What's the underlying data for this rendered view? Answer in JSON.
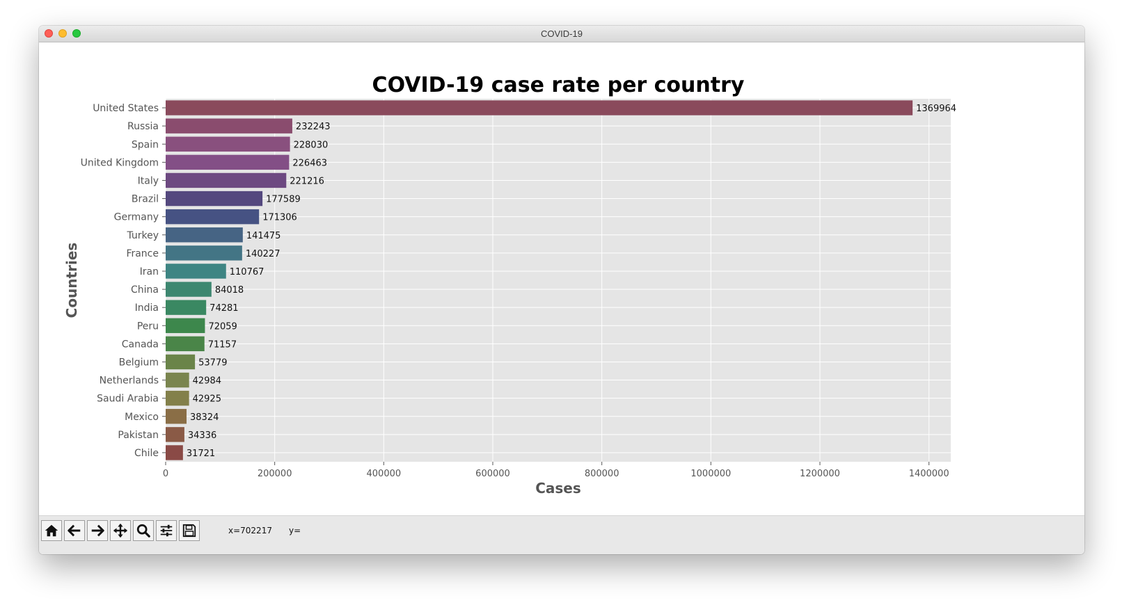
{
  "window": {
    "title": "COVID-19"
  },
  "toolbar": {
    "buttons": [
      "home-icon",
      "back-arrow-icon",
      "forward-arrow-icon",
      "pan-icon",
      "zoom-icon",
      "configure-subplots-icon",
      "save-icon"
    ],
    "x_readout": "x=702217",
    "y_readout": "y="
  },
  "chart_data": {
    "type": "bar",
    "orientation": "horizontal",
    "title": "COVID-19 case rate per country",
    "xlabel": "Cases",
    "ylabel": "Countries",
    "xlim": [
      0,
      1440000
    ],
    "xticks": [
      0,
      200000,
      400000,
      600000,
      800000,
      1000000,
      1200000,
      1400000
    ],
    "xtick_labels": [
      "0",
      "200000",
      "400000",
      "600000",
      "800000",
      "1000000",
      "1200000",
      "1400000"
    ],
    "grid": true,
    "categories": [
      "United States",
      "Russia",
      "Spain",
      "United Kingdom",
      "Italy",
      "Brazil",
      "Germany",
      "Turkey",
      "France",
      "Iran",
      "China",
      "India",
      "Peru",
      "Canada",
      "Belgium",
      "Netherlands",
      "Saudi Arabia",
      "Mexico",
      "Pakistan",
      "Chile"
    ],
    "values": [
      1369964,
      232243,
      228030,
      226463,
      221216,
      177589,
      171306,
      141475,
      140227,
      110767,
      84018,
      74281,
      72059,
      71157,
      53779,
      42984,
      42925,
      38324,
      34336,
      31721
    ],
    "value_labels": [
      "1369964",
      "232243",
      "228030",
      "226463",
      "221216",
      "177589",
      "171306",
      "141475",
      "140227",
      "110767",
      "84018",
      "74281",
      "72059",
      "71157",
      "53779",
      "42984",
      "42925",
      "38324",
      "34336",
      "31721"
    ],
    "colors": [
      "#8a4a5c",
      "#8a4c6e",
      "#89507e",
      "#834f86",
      "#6d4981",
      "#54487e",
      "#465283",
      "#466484",
      "#437585",
      "#3e8583",
      "#3d8770",
      "#3a8862",
      "#3d874c",
      "#4a8548",
      "#6a8449",
      "#7a854f",
      "#83804a",
      "#8a6e46",
      "#8a5a46",
      "#8a4a46"
    ]
  }
}
